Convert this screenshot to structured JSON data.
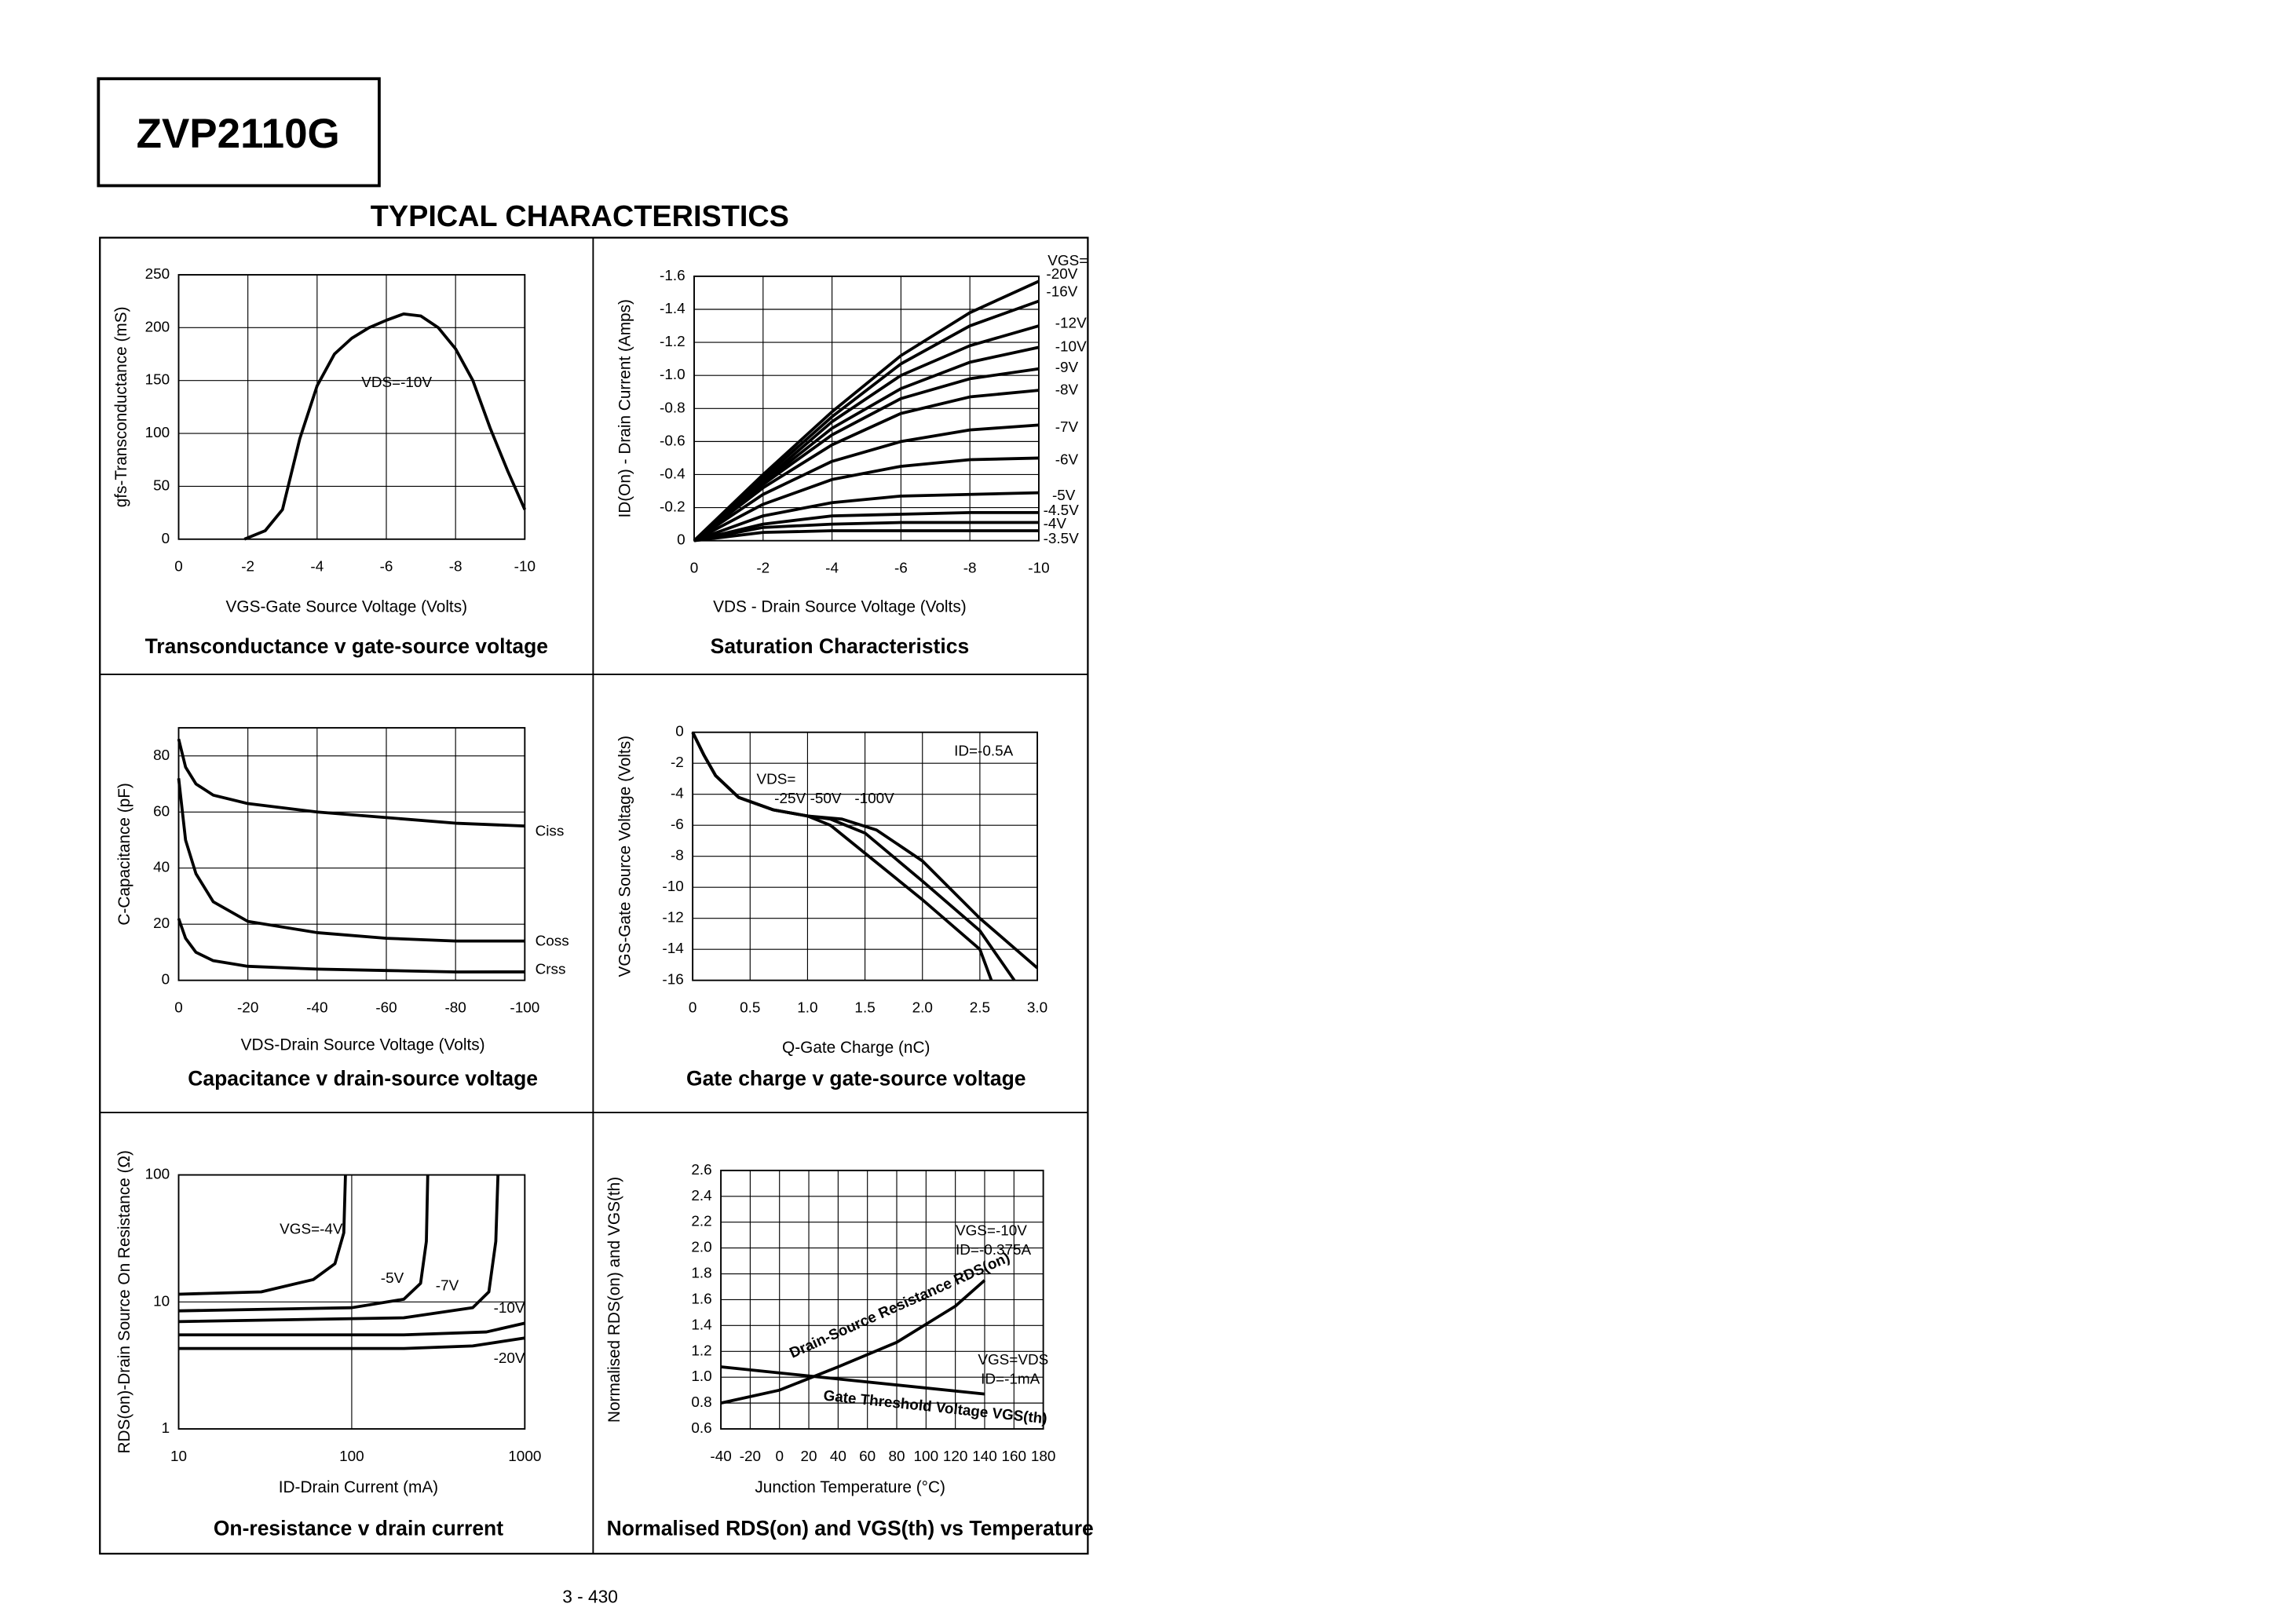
{
  "header": {
    "part": "ZVP2110G",
    "section": "TYPICAL CHARACTERISTICS"
  },
  "chart_data": [
    {
      "type": "line",
      "title": "Transconductance v gate-source voltage",
      "x_label": "VGS-Gate Source Voltage (Volts)",
      "y_label": "gfs-Transconductance (mS)",
      "xlim": [
        0,
        -10
      ],
      "xticks": [
        0,
        -2,
        -4,
        -6,
        -8,
        -10
      ],
      "ylim": [
        0,
        250
      ],
      "yticks": [
        0,
        50,
        100,
        150,
        200,
        250
      ],
      "grid": true,
      "annotations": [
        "VDS=-10V"
      ],
      "series": [
        {
          "name": null,
          "color": "#000",
          "x": [
            -1.9,
            -2.5,
            -3,
            -3.5,
            -4,
            -4.5,
            -5,
            -5.5,
            -6,
            -6.5,
            -7,
            -7.5,
            -8,
            -8.5,
            -9,
            -9.5,
            -10
          ],
          "values": [
            0,
            8,
            28,
            95,
            145,
            175,
            190,
            200,
            207,
            213,
            211,
            200,
            180,
            150,
            105,
            65,
            28
          ]
        }
      ]
    },
    {
      "type": "line",
      "title": "Saturation Characteristics",
      "x_label": "VDS - Drain Source Voltage (Volts)",
      "y_label": "ID(On) - Drain Current (Amps)",
      "xlim": [
        0,
        -10
      ],
      "xticks": [
        0,
        -2,
        -4,
        -6,
        -8,
        -10
      ],
      "ylim": [
        0,
        -1.6
      ],
      "yticks": [
        0,
        -0.2,
        -0.4,
        -0.6,
        -0.8,
        {
          "value": -1,
          "label": "-1.0"
        },
        -1.2,
        -1.4,
        -1.6
      ],
      "grid": true,
      "annotations": [
        "VGS="
      ],
      "x": [
        0,
        -2,
        -4,
        -6,
        -8,
        -10
      ],
      "series": [
        {
          "name": "-20V",
          "color": "#000",
          "values": [
            0,
            -0.4,
            -0.78,
            -1.12,
            -1.38,
            -1.57
          ]
        },
        {
          "name": "-16V",
          "color": "#000",
          "values": [
            0,
            -0.38,
            -0.75,
            -1.07,
            -1.3,
            -1.45
          ]
        },
        {
          "name": "-12V",
          "color": "#000",
          "values": [
            0,
            -0.36,
            -0.72,
            -1.0,
            -1.18,
            -1.3
          ]
        },
        {
          "name": "-10V",
          "color": "#000",
          "values": [
            0,
            -0.35,
            -0.68,
            -0.92,
            -1.08,
            -1.17
          ]
        },
        {
          "name": "-9V",
          "color": "#000",
          "values": [
            0,
            -0.34,
            -0.64,
            -0.86,
            -0.98,
            -1.04
          ]
        },
        {
          "name": "-8V",
          "color": "#000",
          "values": [
            0,
            -0.32,
            -0.58,
            -0.77,
            -0.87,
            -0.91
          ]
        },
        {
          "name": "-7V",
          "color": "#000",
          "values": [
            0,
            -0.28,
            -0.48,
            -0.6,
            -0.67,
            -0.7
          ]
        },
        {
          "name": "-6V",
          "color": "#000",
          "values": [
            0,
            -0.22,
            -0.37,
            -0.45,
            -0.49,
            -0.5
          ]
        },
        {
          "name": "-5V",
          "color": "#000",
          "values": [
            0,
            -0.15,
            -0.23,
            -0.27,
            -0.28,
            -0.29
          ]
        },
        {
          "name": "-4.5V",
          "color": "#000",
          "values": [
            0,
            -0.1,
            -0.15,
            -0.16,
            -0.17,
            -0.17
          ]
        },
        {
          "name": "-4V",
          "color": "#000",
          "values": [
            0,
            -0.08,
            -0.1,
            -0.11,
            -0.11,
            -0.11
          ]
        },
        {
          "name": "-3.5V",
          "color": "#000",
          "values": [
            0,
            -0.05,
            -0.06,
            -0.06,
            -0.06,
            -0.06
          ]
        }
      ]
    },
    {
      "type": "line",
      "title": "Capacitance v drain-source voltage",
      "x_label": "VDS-Drain Source Voltage (Volts)",
      "y_label": "C-Capacitance (pF)",
      "xlim": [
        0,
        -100
      ],
      "xticks": [
        0,
        -20,
        -40,
        -60,
        -80,
        -100
      ],
      "ylim": [
        0,
        90
      ],
      "yticks": [
        0,
        20,
        40,
        60,
        80
      ],
      "grid": true,
      "x": [
        0,
        -2,
        -5,
        -10,
        -20,
        -40,
        -60,
        -80,
        -100
      ],
      "series": [
        {
          "name": "Ciss",
          "color": "#000",
          "values": [
            86,
            76,
            70,
            66,
            63,
            60,
            58,
            56,
            55
          ]
        },
        {
          "name": "Coss",
          "color": "#000",
          "values": [
            72,
            50,
            38,
            28,
            21,
            17,
            15,
            14,
            14
          ]
        },
        {
          "name": "Crss",
          "color": "#000",
          "values": [
            22,
            15,
            10,
            7,
            5,
            4,
            3.5,
            3,
            3
          ]
        }
      ]
    },
    {
      "type": "line",
      "title": "Gate charge v gate-source voltage",
      "x_label": "Q-Gate Charge (nC)",
      "y_label": "VGS-Gate Source Voltage (Volts)",
      "xlim": [
        0,
        3
      ],
      "xticks": [
        0,
        0.5,
        {
          "value": 1,
          "label": "1.0"
        },
        1.5,
        {
          "value": 2,
          "label": "2.0"
        },
        2.5,
        {
          "value": 3,
          "label": "3.0"
        }
      ],
      "ylim": [
        -16,
        0
      ],
      "yticks": [
        0,
        -2,
        -4,
        -6,
        -8,
        -10,
        -12,
        -14,
        -16
      ],
      "grid": true,
      "annotations": [
        "VDS=",
        "ID=-0.5A"
      ],
      "series": [
        {
          "name": "-25V",
          "color": "#000",
          "x": [
            0,
            0.1,
            0.2,
            0.4,
            0.7,
            1.0,
            1.2,
            1.5,
            2.0,
            2.5,
            2.6
          ],
          "values": [
            0,
            -1.5,
            -2.8,
            -4.2,
            -5,
            -5.4,
            -6,
            -7.8,
            -10.8,
            -14,
            -16
          ]
        },
        {
          "name": "-50V",
          "color": "#000",
          "x": [
            0,
            0.1,
            0.2,
            0.4,
            0.7,
            1.0,
            1.2,
            1.5,
            2.0,
            2.5,
            2.8
          ],
          "values": [
            0,
            -1.5,
            -2.8,
            -4.2,
            -5,
            -5.4,
            -5.6,
            -6.5,
            -9.6,
            -12.8,
            -16
          ]
        },
        {
          "name": "-100V",
          "color": "#000",
          "x": [
            0,
            0.1,
            0.2,
            0.4,
            0.7,
            1.0,
            1.3,
            1.6,
            2.0,
            2.5,
            3.0
          ],
          "values": [
            0,
            -1.5,
            -2.8,
            -4.2,
            -5,
            -5.4,
            -5.6,
            -6.3,
            -8.3,
            -12,
            -15.2
          ]
        }
      ]
    },
    {
      "type": "line",
      "title": "On-resistance v drain current",
      "x_label": "ID-Drain Current (mA)",
      "y_label": "RDS(on)-Drain Source On Resistance (Ω)",
      "log_x": true,
      "log_y": true,
      "xlim": [
        10,
        1000
      ],
      "xticks": [
        10,
        100,
        1000
      ],
      "ylim": [
        1,
        100
      ],
      "yticks": [
        1,
        10,
        100
      ],
      "grid": true,
      "series": [
        {
          "name": "VGS=-4V",
          "color": "#000",
          "x": [
            10,
            30,
            60,
            80,
            90,
            92
          ],
          "values": [
            11.5,
            12,
            15,
            20,
            35,
            100
          ]
        },
        {
          "name": "-5V",
          "color": "#000",
          "x": [
            10,
            100,
            200,
            250,
            270,
            275
          ],
          "values": [
            8.5,
            9,
            10.5,
            14,
            30,
            100
          ]
        },
        {
          "name": "-7V",
          "color": "#000",
          "x": [
            10,
            200,
            500,
            620,
            680,
            700
          ],
          "values": [
            7,
            7.5,
            9,
            12,
            30,
            100
          ]
        },
        {
          "name": "-10V",
          "color": "#000",
          "x": [
            10,
            200,
            600,
            1000
          ],
          "values": [
            5.5,
            5.5,
            5.8,
            6.8
          ]
        },
        {
          "name": "-20V",
          "color": "#000",
          "x": [
            10,
            200,
            500,
            1000
          ],
          "values": [
            4.3,
            4.3,
            4.5,
            5.2
          ]
        }
      ]
    },
    {
      "type": "line",
      "title": "Normalised RDS(on) and VGS(th) vs Temperature",
      "x_label": "Junction Temperature (°C)",
      "y_label": "Normalised RDS(on) and VGS(th)",
      "xlim": [
        -40,
        180
      ],
      "xticks": [
        -40,
        -20,
        0,
        20,
        40,
        60,
        80,
        100,
        120,
        140,
        160,
        180
      ],
      "ylim": [
        0.6,
        2.6
      ],
      "yticks": [
        0.6,
        0.8,
        {
          "value": 1,
          "label": "1.0"
        },
        1.2,
        1.4,
        1.6,
        1.8,
        {
          "value": 2,
          "label": "2.0"
        },
        2.2,
        2.4,
        2.6
      ],
      "grid": true,
      "annotations": [
        "VGS=-10V",
        "ID=-0.375A",
        "VGS=VDS",
        "ID=-1mA"
      ],
      "series": [
        {
          "name": "Drain-Source Resistance RDS(on)",
          "color": "#000",
          "x": [
            -40,
            0,
            40,
            80,
            120,
            140
          ],
          "values": [
            0.8,
            0.9,
            1.08,
            1.27,
            1.55,
            1.75
          ]
        },
        {
          "name": "Gate Threshold Voltage VGS(th)",
          "color": "#000",
          "x": [
            -40,
            140
          ],
          "values": [
            1.08,
            0.87
          ]
        }
      ]
    }
  ],
  "footer": {
    "page": "3 - 430"
  }
}
